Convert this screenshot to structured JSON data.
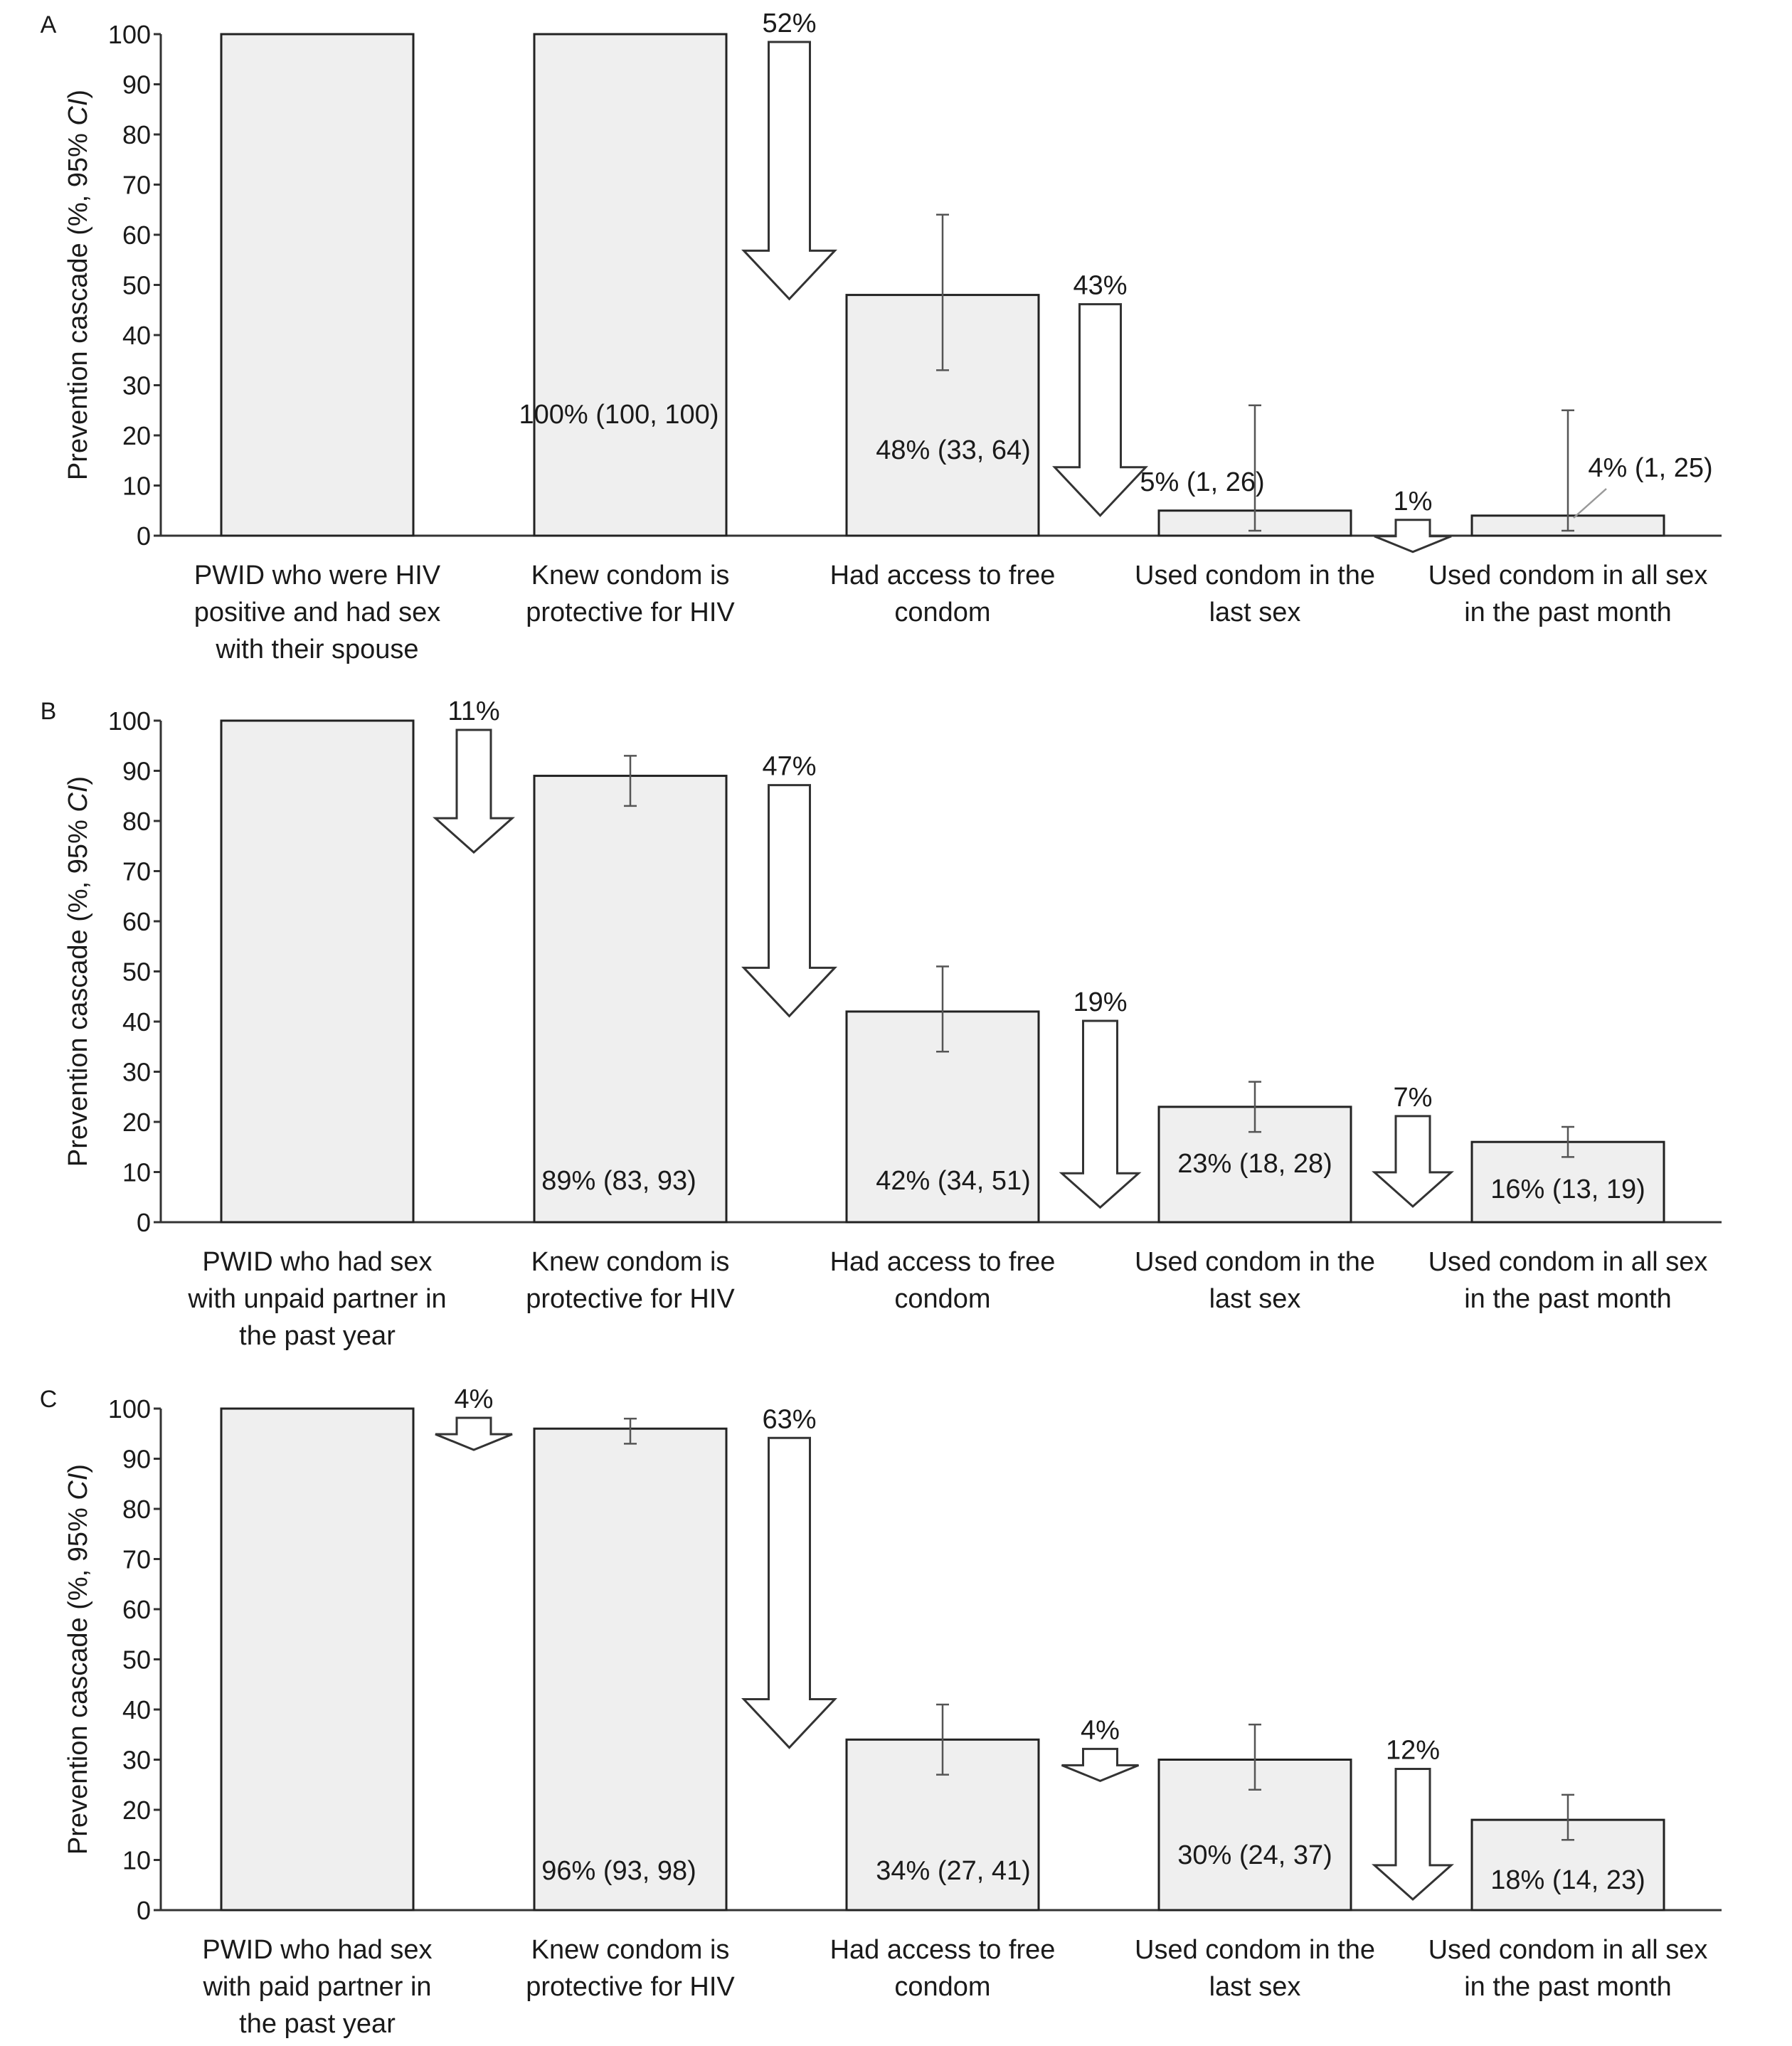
{
  "chart_data": [
    {
      "type": "bar",
      "panel": "A",
      "ylabel": "Prevention cascade (%, 95% CI)",
      "ylim": [
        0,
        100
      ],
      "yticks": [
        0,
        10,
        20,
        30,
        40,
        50,
        60,
        70,
        80,
        90,
        100
      ],
      "categories": [
        [
          "PWID who were HIV",
          "positive and had sex",
          "with their spouse"
        ],
        [
          "Knew condom is",
          "protective for HIV"
        ],
        [
          "Had access to free",
          "condom"
        ],
        [
          "Used condom in the",
          "last sex"
        ],
        [
          "Used condom in all sex",
          "in the past month"
        ]
      ],
      "values": [
        100,
        100,
        48,
        5,
        4
      ],
      "ci_low": [
        null,
        null,
        33,
        1,
        1
      ],
      "ci_high": [
        null,
        null,
        64,
        26,
        25
      ],
      "labels": [
        "",
        "100% (100, 100)",
        "48% (33, 64)",
        "5% (1, 26)",
        "4% (1, 25)"
      ],
      "drops": [
        {
          "label": "",
          "value": 0
        },
        {
          "label": "52%",
          "value": 52
        },
        {
          "label": "43%",
          "value": 43
        },
        {
          "label": "1%",
          "value": 1
        }
      ]
    },
    {
      "type": "bar",
      "panel": "B",
      "ylabel": "Prevention cascade (%, 95% CI)",
      "ylim": [
        0,
        100
      ],
      "yticks": [
        0,
        10,
        20,
        30,
        40,
        50,
        60,
        70,
        80,
        90,
        100
      ],
      "categories": [
        [
          "PWID who had sex",
          "with unpaid partner in",
          "the past year"
        ],
        [
          "Knew condom is",
          "protective for HIV"
        ],
        [
          "Had access to free",
          "condom"
        ],
        [
          "Used condom in the",
          "last sex"
        ],
        [
          "Used condom in all sex",
          "in the past month"
        ]
      ],
      "values": [
        100,
        89,
        42,
        23,
        16
      ],
      "ci_low": [
        null,
        83,
        34,
        18,
        13
      ],
      "ci_high": [
        null,
        93,
        51,
        28,
        19
      ],
      "labels": [
        "",
        "89% (83, 93)",
        "42% (34, 51)",
        "23% (18, 28)",
        "16% (13, 19)"
      ],
      "drops": [
        {
          "label": "11%",
          "value": 11
        },
        {
          "label": "47%",
          "value": 47
        },
        {
          "label": "19%",
          "value": 19
        },
        {
          "label": "7%",
          "value": 7
        }
      ]
    },
    {
      "type": "bar",
      "panel": "C",
      "ylabel": "Prevention cascade (%, 95% CI)",
      "ylim": [
        0,
        100
      ],
      "yticks": [
        0,
        10,
        20,
        30,
        40,
        50,
        60,
        70,
        80,
        90,
        100
      ],
      "categories": [
        [
          "PWID who had sex",
          "with paid partner in",
          "the past year"
        ],
        [
          "Knew condom is",
          "protective for HIV"
        ],
        [
          "Had access to free",
          "condom"
        ],
        [
          "Used condom in the",
          "last sex"
        ],
        [
          "Used condom in all sex",
          "in the past month"
        ]
      ],
      "values": [
        100,
        96,
        34,
        30,
        18
      ],
      "ci_low": [
        null,
        93,
        27,
        24,
        14
      ],
      "ci_high": [
        null,
        98,
        41,
        37,
        23
      ],
      "labels": [
        "",
        "96% (93, 98)",
        "34% (27, 41)",
        "30% (24, 37)",
        "18% (14, 23)"
      ],
      "drops": [
        {
          "label": "4%",
          "value": 4
        },
        {
          "label": "63%",
          "value": 63
        },
        {
          "label": "4%",
          "value": 4
        },
        {
          "label": "12%",
          "value": 12
        }
      ]
    }
  ]
}
